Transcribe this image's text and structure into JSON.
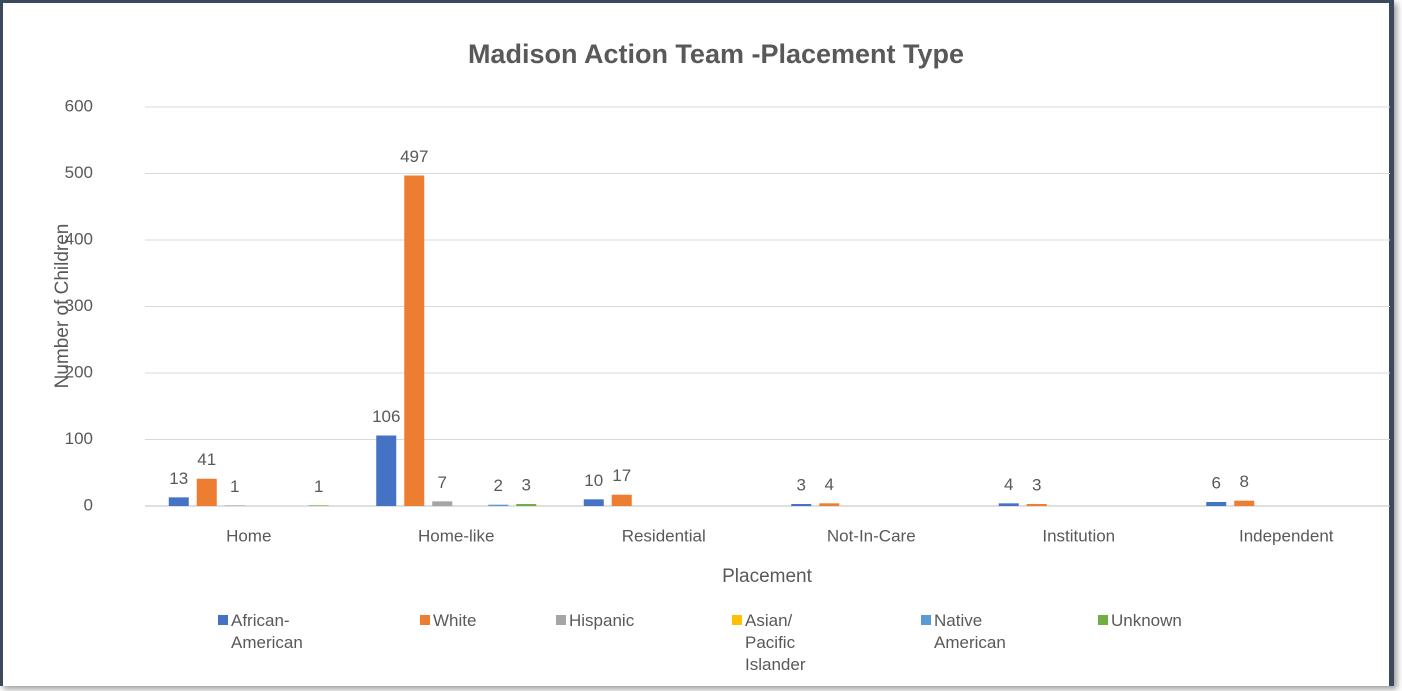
{
  "chart_data": {
    "type": "bar",
    "title": "Madison Action Team -Placement Type",
    "x_label": "Placement",
    "y_label": "Number of Children",
    "categories": [
      "Home",
      "Home-like",
      "Residential",
      "Not-In-Care",
      "Institution",
      "Independent"
    ],
    "series": [
      {
        "name": "African-American",
        "color": "#4472c4",
        "values": [
          13,
          106,
          10,
          3,
          4,
          6
        ]
      },
      {
        "name": "White",
        "color": "#ed7d31",
        "values": [
          41,
          497,
          17,
          4,
          3,
          8
        ]
      },
      {
        "name": "Hispanic",
        "color": "#a5a5a5",
        "values": [
          1,
          7,
          null,
          null,
          null,
          null
        ]
      },
      {
        "name": "Asian/ Pacific Islander",
        "color": "#ffc000",
        "values": [
          null,
          null,
          null,
          null,
          null,
          null
        ]
      },
      {
        "name": "Native American",
        "color": "#5b9bd5",
        "values": [
          null,
          2,
          null,
          null,
          null,
          null
        ]
      },
      {
        "name": "Unknown",
        "color": "#70ad47",
        "values": [
          1,
          3,
          null,
          null,
          null,
          null
        ]
      }
    ],
    "ylim": [
      0,
      600
    ],
    "yticks": [
      0,
      100,
      200,
      300,
      400,
      500,
      600
    ],
    "grid": true,
    "legend": "bottom"
  }
}
